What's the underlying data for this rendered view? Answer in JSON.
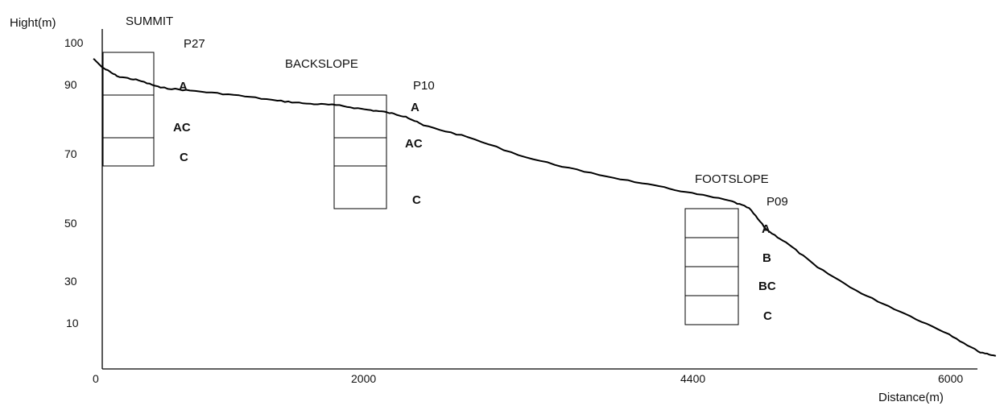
{
  "chart_data": {
    "type": "line",
    "ylabel": "Hight(m)",
    "xlabel": "Distance(m)",
    "xlim": [
      0,
      6000
    ],
    "x_ticks": [
      "0",
      "2000",
      "4400",
      "6000"
    ],
    "y_ticks": [
      "100",
      "90",
      "70",
      "50",
      "30",
      "10"
    ],
    "profile": {
      "x": [
        -60,
        0,
        100,
        250,
        400,
        600,
        900,
        1200,
        1400,
        1600,
        1800,
        1950,
        2080,
        2200,
        2500,
        2900,
        3300,
        3700,
        4000,
        4300,
        4430,
        4550,
        4700,
        4900,
        5200,
        5500,
        5800,
        6000,
        6120
      ],
      "y": [
        107,
        104,
        101,
        99.5,
        97,
        96,
        94.5,
        92.5,
        91.5,
        91,
        89.5,
        88.5,
        87,
        84,
        80,
        73,
        68,
        64,
        61,
        58,
        55.5,
        48,
        43,
        35,
        26,
        19,
        12,
        6,
        4.5
      ]
    }
  },
  "positions": [
    {
      "name": "SUMMIT",
      "profile": "P27",
      "horizons": [
        "A",
        "AC",
        "C"
      ]
    },
    {
      "name": "BACKSLOPE",
      "profile": "P10",
      "horizons": [
        "A",
        "AC",
        "C"
      ]
    },
    {
      "name": "FOOTSLOPE",
      "profile": "P09",
      "horizons": [
        "A",
        "B",
        "BC",
        "C"
      ]
    }
  ]
}
